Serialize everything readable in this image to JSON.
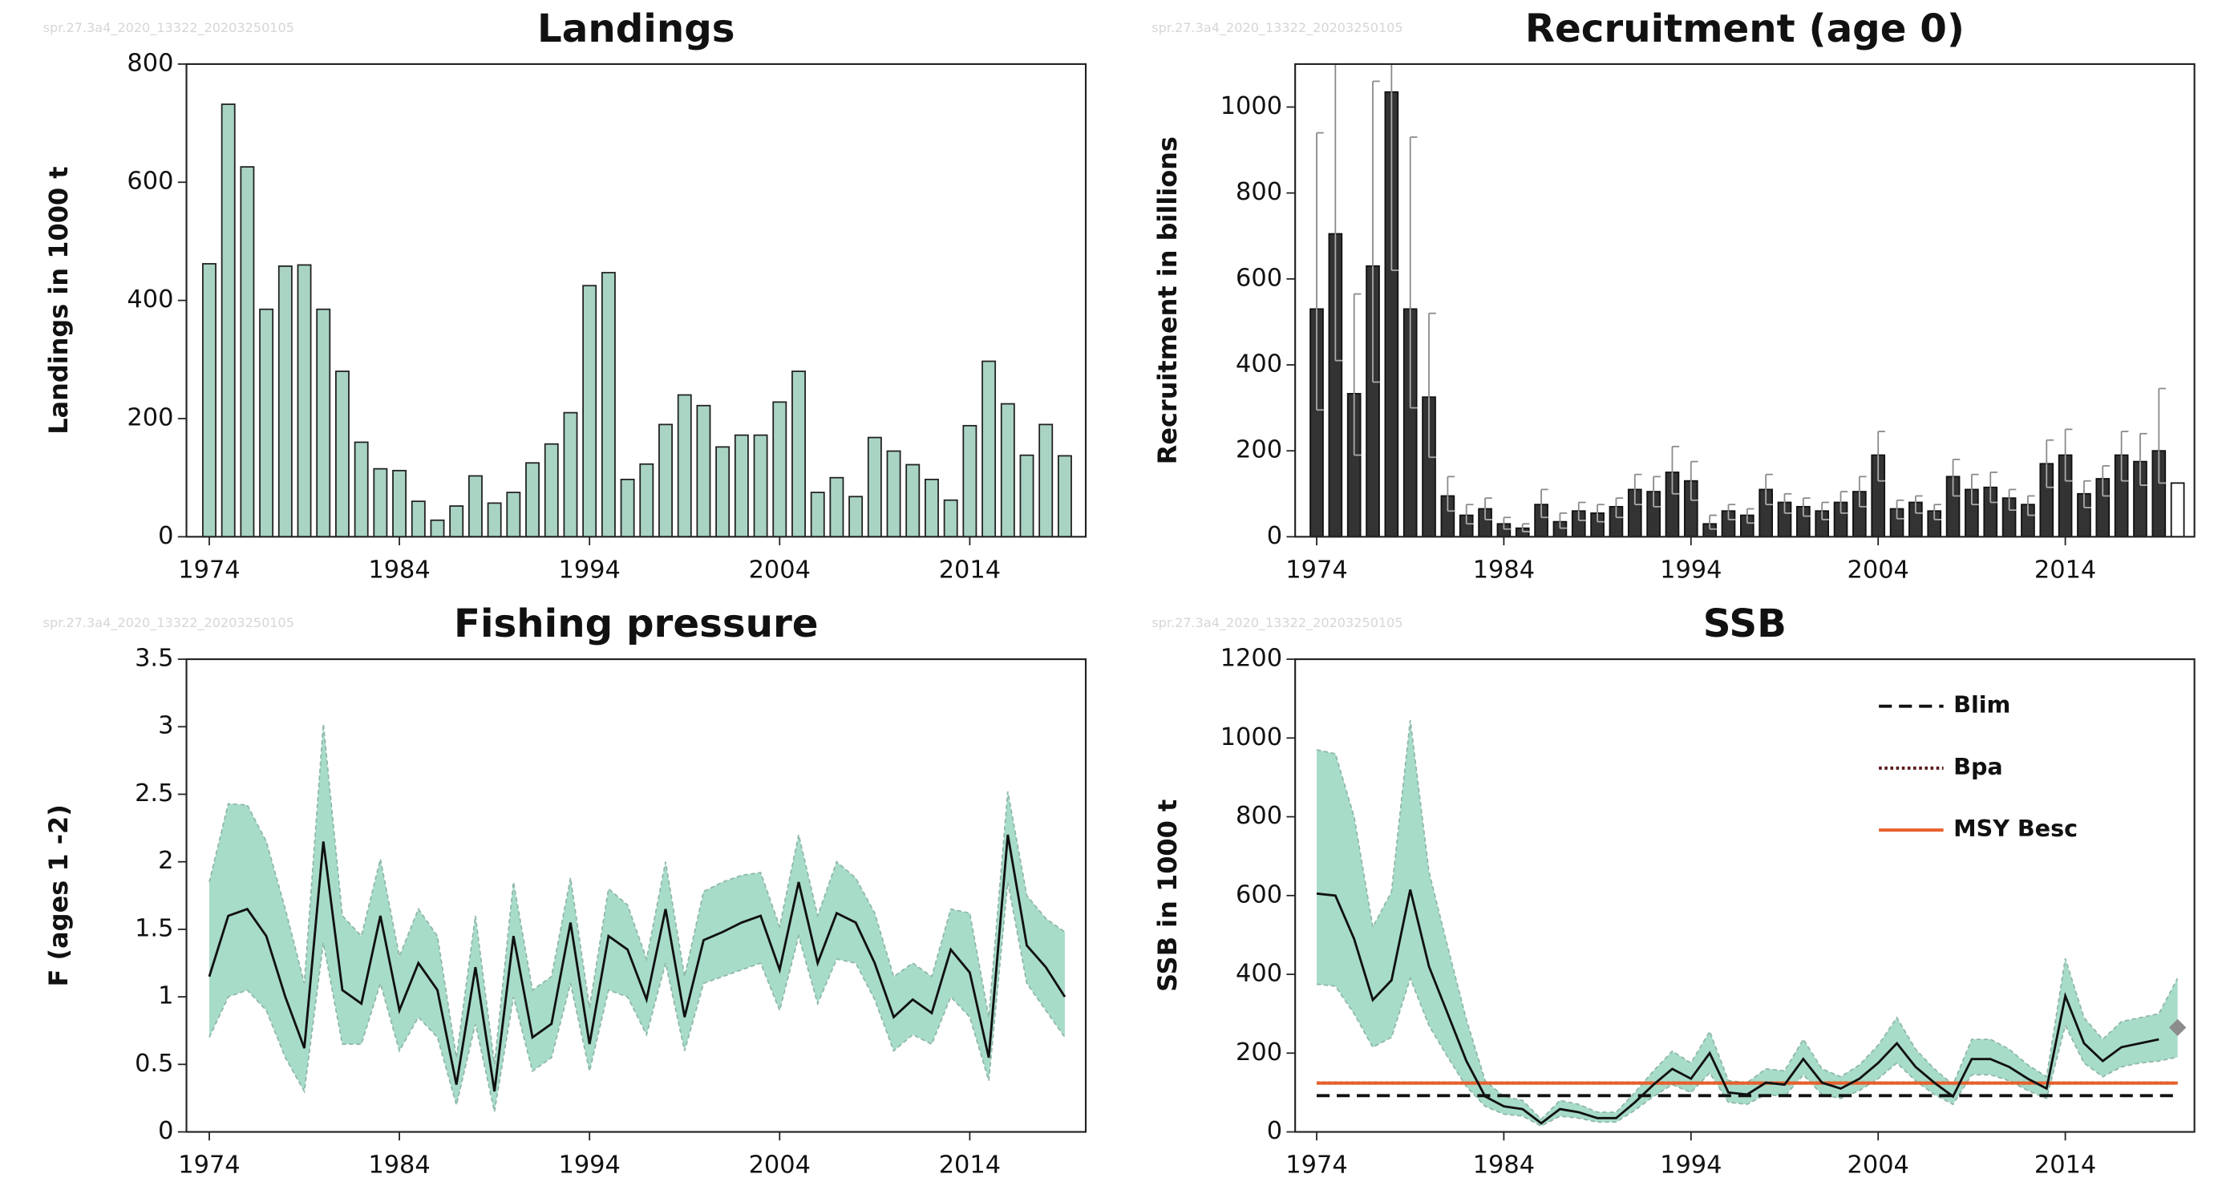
{
  "chart_data": [
    {
      "type": "bar",
      "title": "Landings",
      "ylabel": "Landings in 1000 t",
      "watermark": "spr.27.3a4_2020_13322_20203250105",
      "x": [
        1974,
        1975,
        1976,
        1977,
        1978,
        1979,
        1980,
        1981,
        1982,
        1983,
        1984,
        1985,
        1986,
        1987,
        1988,
        1989,
        1990,
        1991,
        1992,
        1993,
        1994,
        1995,
        1996,
        1997,
        1998,
        1999,
        2000,
        2001,
        2002,
        2003,
        2004,
        2005,
        2006,
        2007,
        2008,
        2009,
        2010,
        2011,
        2012,
        2013,
        2014,
        2015,
        2016,
        2017,
        2018,
        2019
      ],
      "values": [
        462,
        732,
        626,
        385,
        458,
        460,
        385,
        280,
        160,
        115,
        112,
        60,
        28,
        52,
        103,
        57,
        75,
        125,
        157,
        210,
        425,
        447,
        97,
        123,
        190,
        240,
        222,
        152,
        172,
        172,
        228,
        280,
        75,
        100,
        68,
        168,
        145,
        122,
        97,
        62,
        188,
        297,
        225,
        138,
        190,
        137
      ],
      "color": "#a9d4c3",
      "edge_color": "#222",
      "xlim": [
        1972.8,
        2020.1
      ],
      "xticks": [
        1974,
        1984,
        1994,
        2004,
        2014
      ],
      "ylim": [
        0,
        800
      ],
      "yticks": [
        0,
        200,
        400,
        600,
        800
      ]
    },
    {
      "type": "bar",
      "title": "Recruitment (age 0)",
      "ylabel": "Recruitment in billions",
      "watermark": "spr.27.3a4_2020_13322_20203250105",
      "x": [
        1974,
        1975,
        1976,
        1977,
        1978,
        1979,
        1980,
        1981,
        1982,
        1983,
        1984,
        1985,
        1986,
        1987,
        1988,
        1989,
        1990,
        1991,
        1992,
        1993,
        1994,
        1995,
        1996,
        1997,
        1998,
        1999,
        2000,
        2001,
        2002,
        2003,
        2004,
        2005,
        2006,
        2007,
        2008,
        2009,
        2010,
        2011,
        2012,
        2013,
        2014,
        2015,
        2016,
        2017,
        2018,
        2019,
        2020
      ],
      "values": [
        530,
        705,
        333,
        630,
        1035,
        530,
        325,
        95,
        50,
        65,
        30,
        20,
        75,
        35,
        60,
        55,
        70,
        110,
        105,
        150,
        130,
        30,
        60,
        50,
        110,
        80,
        70,
        60,
        80,
        105,
        190,
        65,
        80,
        60,
        140,
        110,
        115,
        90,
        75,
        170,
        190,
        100,
        135,
        190,
        175,
        200,
        125
      ],
      "upper": [
        940,
        1100,
        565,
        1060,
        1100,
        930,
        520,
        140,
        75,
        90,
        45,
        30,
        110,
        55,
        80,
        75,
        90,
        145,
        140,
        210,
        175,
        50,
        75,
        65,
        145,
        100,
        90,
        80,
        105,
        140,
        245,
        85,
        95,
        75,
        180,
        145,
        150,
        110,
        95,
        225,
        250,
        130,
        165,
        245,
        240,
        345,
        null
      ],
      "lower": [
        295,
        410,
        190,
        360,
        620,
        300,
        185,
        60,
        30,
        40,
        18,
        12,
        45,
        20,
        38,
        35,
        45,
        75,
        70,
        100,
        85,
        18,
        40,
        32,
        75,
        55,
        48,
        40,
        55,
        70,
        130,
        42,
        55,
        40,
        95,
        75,
        80,
        62,
        50,
        115,
        130,
        68,
        95,
        130,
        120,
        125,
        null
      ],
      "colors": [
        "#333",
        "#333",
        "#333",
        "#333",
        "#333",
        "#333",
        "#333",
        "#333",
        "#333",
        "#333",
        "#333",
        "#333",
        "#333",
        "#333",
        "#333",
        "#333",
        "#333",
        "#333",
        "#333",
        "#333",
        "#333",
        "#333",
        "#333",
        "#333",
        "#333",
        "#333",
        "#333",
        "#333",
        "#333",
        "#333",
        "#333",
        "#333",
        "#333",
        "#333",
        "#333",
        "#333",
        "#333",
        "#333",
        "#333",
        "#333",
        "#333",
        "#333",
        "#333",
        "#333",
        "#333",
        "#333",
        "#ffffff"
      ],
      "edge_color": "#111",
      "error_color": "#8a8a8a",
      "xlim": [
        1972.85,
        2020.9
      ],
      "xticks": [
        1974,
        1984,
        1994,
        2004,
        2014
      ],
      "ylim": [
        0,
        1100
      ],
      "yticks": [
        0,
        200,
        400,
        600,
        800,
        1000
      ]
    },
    {
      "type": "line",
      "title": "Fishing pressure",
      "ylabel": "F (ages 1 -2)",
      "watermark": "spr.27.3a4_2020_13322_20203250105",
      "x": [
        1974,
        1975,
        1976,
        1977,
        1978,
        1979,
        1980,
        1981,
        1982,
        1983,
        1984,
        1985,
        1986,
        1987,
        1988,
        1989,
        1990,
        1991,
        1992,
        1993,
        1994,
        1995,
        1996,
        1997,
        1998,
        1999,
        2000,
        2001,
        2002,
        2003,
        2004,
        2005,
        2006,
        2007,
        2008,
        2009,
        2010,
        2011,
        2012,
        2013,
        2014,
        2015,
        2016,
        2017,
        2018,
        2019
      ],
      "values": [
        1.15,
        1.6,
        1.65,
        1.45,
        1.0,
        0.62,
        2.15,
        1.05,
        0.95,
        1.6,
        0.9,
        1.25,
        1.05,
        0.35,
        1.22,
        0.3,
        1.45,
        0.7,
        0.8,
        1.55,
        0.65,
        1.45,
        1.35,
        0.98,
        1.65,
        0.85,
        1.42,
        1.48,
        1.55,
        1.6,
        1.2,
        1.85,
        1.25,
        1.62,
        1.55,
        1.25,
        0.85,
        0.98,
        0.88,
        1.35,
        1.18,
        0.55,
        2.2,
        1.38,
        1.22,
        1.0
      ],
      "lower": [
        0.7,
        1.0,
        1.05,
        0.9,
        0.55,
        0.3,
        1.4,
        0.65,
        0.65,
        1.1,
        0.6,
        0.85,
        0.7,
        0.2,
        0.8,
        0.15,
        1.0,
        0.45,
        0.55,
        1.1,
        0.45,
        1.05,
        1.0,
        0.72,
        1.25,
        0.6,
        1.1,
        1.15,
        1.2,
        1.25,
        0.9,
        1.45,
        0.95,
        1.28,
        1.25,
        0.98,
        0.6,
        0.72,
        0.65,
        1.0,
        0.85,
        0.38,
        1.85,
        1.1,
        0.9,
        0.7
      ],
      "upper": [
        1.85,
        2.43,
        2.42,
        2.15,
        1.65,
        1.1,
        3.02,
        1.6,
        1.45,
        2.02,
        1.3,
        1.65,
        1.45,
        0.55,
        1.6,
        0.5,
        1.85,
        1.05,
        1.15,
        1.88,
        0.92,
        1.8,
        1.68,
        1.28,
        2.0,
        1.15,
        1.78,
        1.85,
        1.9,
        1.92,
        1.52,
        2.2,
        1.6,
        2.0,
        1.88,
        1.62,
        1.15,
        1.25,
        1.15,
        1.65,
        1.62,
        0.85,
        2.52,
        1.75,
        1.58,
        1.48
      ],
      "color": "#111",
      "band_color": "#a7dcc9",
      "band_edge_color": "#8fb8a8",
      "xlim": [
        1972.8,
        2020.1
      ],
      "xticks": [
        1974,
        1984,
        1994,
        2004,
        2014
      ],
      "ylim": [
        0,
        3.5
      ],
      "yticks": [
        0,
        0.5,
        1,
        1.5,
        2,
        2.5,
        3,
        3.5
      ]
    },
    {
      "type": "line",
      "title": "SSB",
      "ylabel": "SSB in 1000 t",
      "watermark": "spr.27.3a4_2020_13322_20203250105",
      "x": [
        1974,
        1975,
        1976,
        1977,
        1978,
        1979,
        1980,
        1981,
        1982,
        1983,
        1984,
        1985,
        1986,
        1987,
        1988,
        1989,
        1990,
        1991,
        1992,
        1993,
        1994,
        1995,
        1996,
        1997,
        1998,
        1999,
        2000,
        2001,
        2002,
        2003,
        2004,
        2005,
        2006,
        2007,
        2008,
        2009,
        2010,
        2011,
        2012,
        2013,
        2014,
        2015,
        2016,
        2017,
        2018,
        2019,
        2020
      ],
      "values": [
        605,
        600,
        490,
        335,
        385,
        615,
        420,
        300,
        180,
        90,
        65,
        58,
        22,
        58,
        50,
        35,
        35,
        75,
        120,
        160,
        135,
        200,
        100,
        95,
        125,
        120,
        185,
        125,
        110,
        135,
        175,
        225,
        165,
        125,
        90,
        185,
        185,
        165,
        135,
        110,
        345,
        225,
        180,
        215,
        225,
        235,
        null
      ],
      "lower": [
        375,
        370,
        300,
        215,
        240,
        390,
        270,
        190,
        115,
        65,
        45,
        40,
        15,
        40,
        35,
        25,
        25,
        55,
        90,
        120,
        100,
        150,
        75,
        70,
        95,
        90,
        145,
        95,
        85,
        105,
        135,
        175,
        130,
        95,
        70,
        145,
        145,
        130,
        105,
        85,
        270,
        175,
        140,
        165,
        175,
        180,
        190
      ],
      "upper": [
        970,
        960,
        800,
        520,
        610,
        1045,
        660,
        470,
        285,
        130,
        90,
        80,
        32,
        80,
        70,
        50,
        50,
        100,
        155,
        205,
        175,
        255,
        130,
        125,
        160,
        155,
        235,
        160,
        140,
        170,
        220,
        290,
        210,
        160,
        120,
        235,
        235,
        210,
        170,
        140,
        440,
        290,
        235,
        280,
        290,
        300,
        390
      ],
      "color": "#111",
      "band_color": "#a7dcc9",
      "band_edge_color": "#8fb8a8",
      "forecast": {
        "x": 2020,
        "value": 265,
        "color": "#8c8c8c"
      },
      "reference_lines": [
        {
          "name": "Blim",
          "value": 92,
          "color": "#111",
          "style": "dashed"
        },
        {
          "name": "Bpa",
          "value": 124,
          "color": "#5a1a1a",
          "style": "dotted"
        },
        {
          "name": "MSY Besc",
          "value": 124,
          "color": "#e8602c",
          "style": "solid"
        }
      ],
      "xlim": [
        1972.85,
        2020.9
      ],
      "xticks": [
        1974,
        1984,
        1994,
        2004,
        2014
      ],
      "ylim": [
        0,
        1200
      ],
      "yticks": [
        0,
        200,
        400,
        600,
        800,
        1000,
        1200
      ]
    }
  ]
}
